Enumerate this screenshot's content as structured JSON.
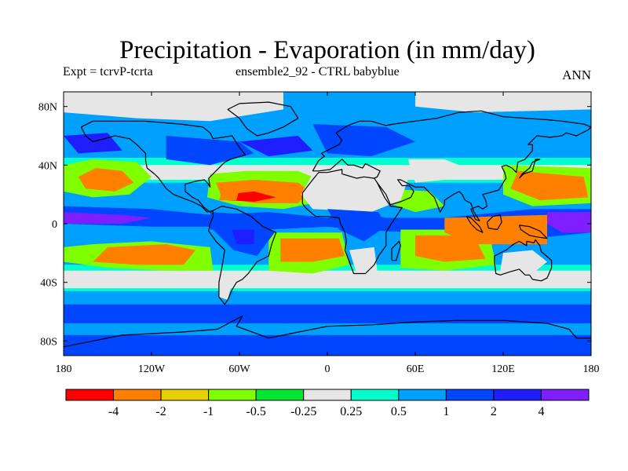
{
  "chart_data": {
    "type": "heatmap",
    "title": "Precipitation - Evaporation (in mm/day)",
    "subtitle_left": "Expt = tcrvP-tcrta",
    "subtitle_center": "ensemble2_92 - CTRL babyblue",
    "season": "ANN",
    "xlim": [
      -180,
      180
    ],
    "ylim": [
      -90,
      90
    ],
    "x_ticks": [
      {
        "value": -180,
        "label": "180"
      },
      {
        "value": -120,
        "label": "120W"
      },
      {
        "value": -60,
        "label": "60W"
      },
      {
        "value": 0,
        "label": "0"
      },
      {
        "value": 60,
        "label": "60E"
      },
      {
        "value": 120,
        "label": "120E"
      },
      {
        "value": 180,
        "label": "180"
      }
    ],
    "y_ticks": [
      {
        "value": 80,
        "label": "80N"
      },
      {
        "value": 40,
        "label": "40N"
      },
      {
        "value": 0,
        "label": "0"
      },
      {
        "value": -40,
        "label": "40S"
      },
      {
        "value": -80,
        "label": "80S"
      }
    ],
    "colorbar": {
      "colors": [
        "#ff0000",
        "#ff7f00",
        "#e6d200",
        "#7fff00",
        "#00e632",
        "#e6e6e6",
        "#00ffcc",
        "#00a0ff",
        "#0046ff",
        "#1e1eff",
        "#7f1eff"
      ],
      "labels": [
        "-4",
        "-2",
        "-1",
        "-0.5",
        "-0.25",
        "0.25",
        "0.5",
        "1",
        "2",
        "4"
      ]
    }
  }
}
